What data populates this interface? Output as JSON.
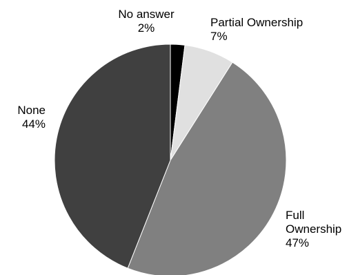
{
  "chart_data": {
    "type": "pie",
    "title": "",
    "slices": [
      {
        "label_lines": [
          "No answer"
        ],
        "value": 2,
        "value_text": "2%",
        "color": "#000000"
      },
      {
        "label_lines": [
          "Partial Ownership"
        ],
        "value": 7,
        "value_text": "7%",
        "color": "#e0e0e0"
      },
      {
        "label_lines": [
          "Full",
          "Ownership"
        ],
        "value": 47,
        "value_text": "47%",
        "color": "#808080"
      },
      {
        "label_lines": [
          "None"
        ],
        "value": 44,
        "value_text": "44%",
        "color": "#404040"
      }
    ],
    "start_angle": "12 o'clock",
    "direction": "clockwise",
    "legend": "none",
    "labels": "outside"
  }
}
